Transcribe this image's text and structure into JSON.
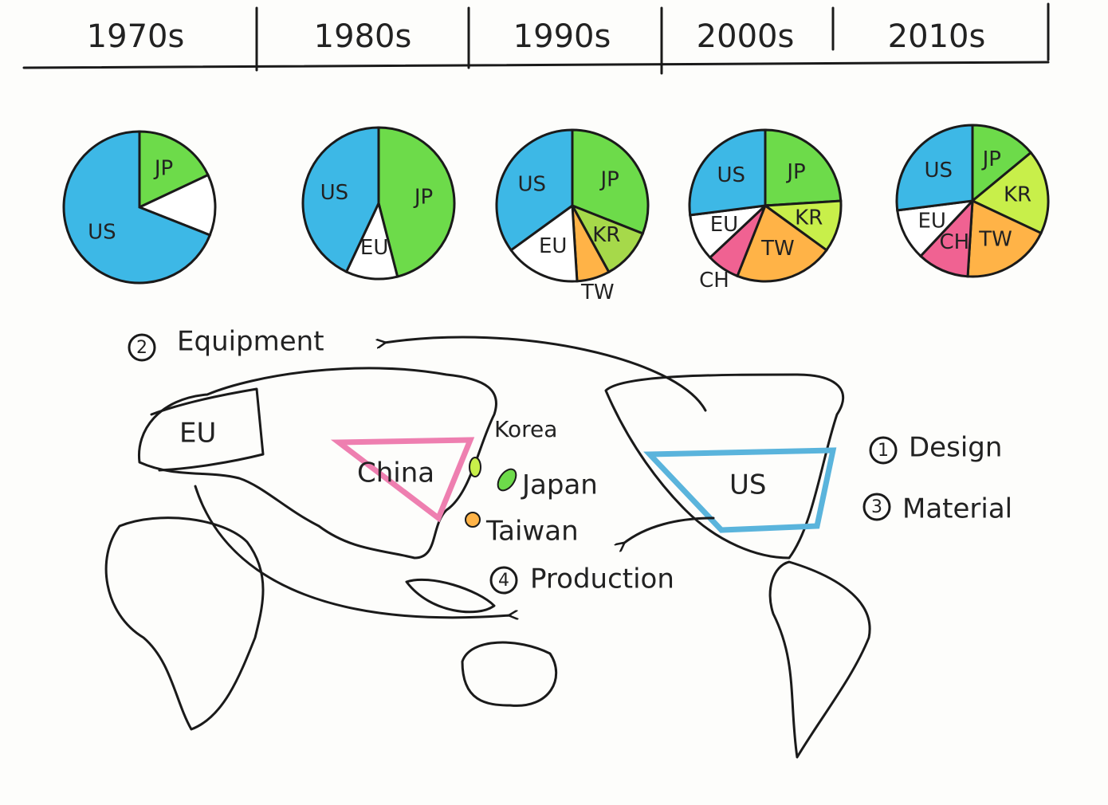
{
  "chart_data": [
    {
      "type": "pie",
      "title": "1970s",
      "categories": [
        "JP",
        null,
        "US"
      ],
      "values": [
        18,
        13,
        69
      ],
      "colors": [
        "#6ddb4a",
        "#ffffff",
        "#3db8e6"
      ]
    },
    {
      "type": "pie",
      "title": "1980s",
      "categories": [
        "JP",
        "EU",
        "US"
      ],
      "values": [
        46,
        11,
        43
      ],
      "colors": [
        "#6ddb4a",
        "#ffffff",
        "#3db8e6"
      ]
    },
    {
      "type": "pie",
      "title": "1990s",
      "categories": [
        "JP",
        "KR",
        "TW",
        "EU",
        "US"
      ],
      "values": [
        31,
        11,
        7,
        16,
        35
      ],
      "colors": [
        "#6ddb4a",
        "#a6d94a",
        "#ffb347",
        "#ffffff",
        "#3db8e6"
      ]
    },
    {
      "type": "pie",
      "title": "2000s",
      "categories": [
        "JP",
        "KR",
        "TW",
        "CH",
        "EU",
        "US"
      ],
      "values": [
        24,
        11,
        21,
        7,
        10,
        27
      ],
      "colors": [
        "#6ddb4a",
        "#c8ef4a",
        "#ffb347",
        "#f06292",
        "#ffffff",
        "#3db8e6"
      ]
    },
    {
      "type": "pie",
      "title": "2010s",
      "categories": [
        "JP",
        "KR",
        "TW",
        "CH",
        "EU",
        "US"
      ],
      "values": [
        14,
        18,
        19,
        11,
        11,
        27
      ],
      "colors": [
        "#6ddb4a",
        "#c8ef4a",
        "#ffb347",
        "#f06292",
        "#ffffff",
        "#3db8e6"
      ]
    }
  ],
  "map": {
    "regions": {
      "eu": "EU",
      "china": "China",
      "korea": "Korea",
      "japan": "Japan",
      "taiwan": "Taiwan",
      "us": "US"
    },
    "steps": [
      {
        "number": "1",
        "label": "Design"
      },
      {
        "number": "2",
        "label": "Equipment"
      },
      {
        "number": "3",
        "label": "Material"
      },
      {
        "number": "4",
        "label": "Production"
      }
    ]
  }
}
